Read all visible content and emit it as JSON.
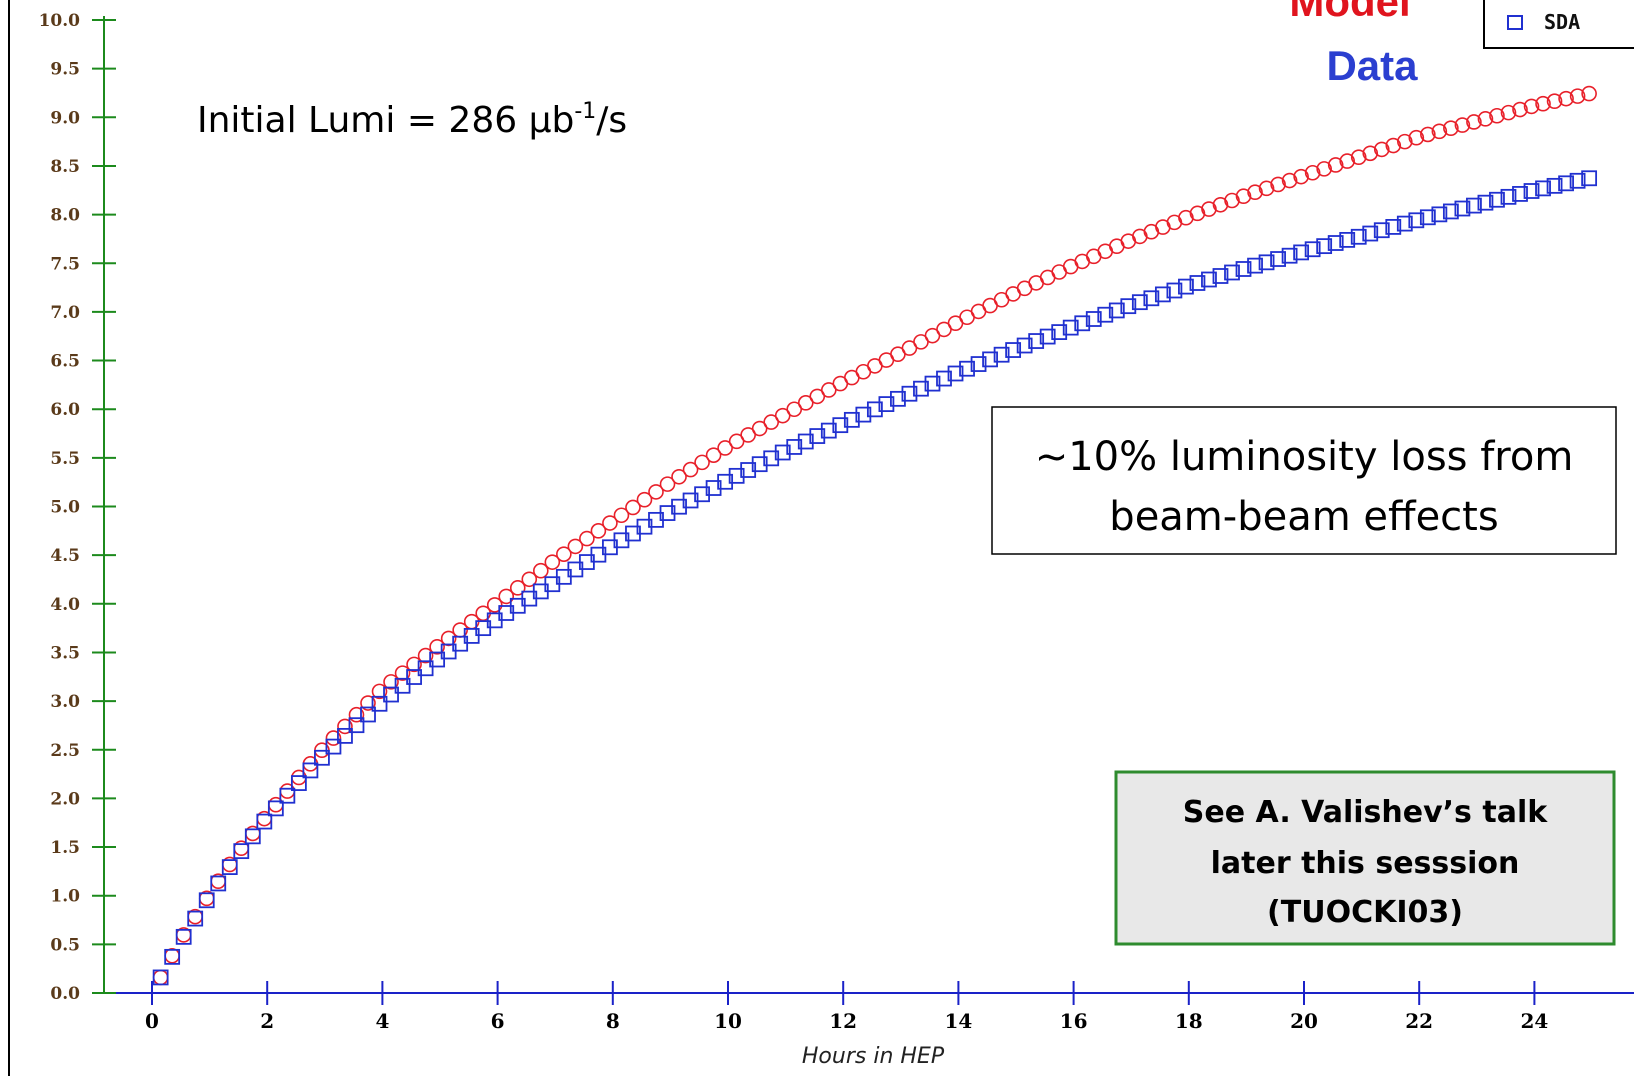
{
  "chart_data": {
    "type": "scatter",
    "xlabel": "Hours in HEP",
    "ylabel": "",
    "xlim": [
      -0.7,
      25.7
    ],
    "ylim": [
      0,
      10
    ],
    "x_ticks": [
      "0",
      "2",
      "4",
      "6",
      "8",
      "10",
      "12",
      "14",
      "16",
      "18",
      "20",
      "22",
      "24"
    ],
    "y_ticks": [
      "0.0",
      "0.5",
      "1.0",
      "1.5",
      "2.0",
      "2.5",
      "3.0",
      "3.5",
      "4.0",
      "4.5",
      "5.0",
      "5.5",
      "6.0",
      "6.5",
      "7.0",
      "7.5",
      "8.0",
      "8.5",
      "9.0",
      "9.5",
      "10.0"
    ],
    "grid": false,
    "legend_position": "top-right",
    "series": [
      {
        "name": "Model",
        "marker": "circle",
        "color": "#e8202a",
        "x": [
          0.15,
          0.5,
          1,
          1.5,
          2,
          3,
          4,
          5,
          6,
          7,
          8,
          9,
          10,
          11,
          12,
          13,
          14,
          15,
          16,
          17,
          18,
          19,
          20,
          21,
          22,
          23,
          24,
          25
        ],
        "y": [
          0.16,
          0.55,
          1.02,
          1.45,
          1.83,
          2.53,
          3.13,
          3.58,
          4.01,
          4.45,
          4.85,
          5.25,
          5.62,
          5.95,
          6.28,
          6.58,
          6.9,
          7.2,
          7.48,
          7.74,
          7.98,
          8.2,
          8.4,
          8.6,
          8.8,
          8.96,
          9.12,
          9.25
        ]
      },
      {
        "name": "SDA",
        "marker": "square",
        "color": "#2030d0",
        "x": [
          0.15,
          0.5,
          1,
          1.5,
          2,
          3,
          4,
          5,
          6,
          7,
          8,
          9,
          10,
          11,
          12,
          13,
          14,
          15,
          16,
          17,
          18,
          19,
          20,
          21,
          22,
          23,
          24,
          25
        ],
        "y": [
          0.16,
          0.53,
          1.0,
          1.42,
          1.8,
          2.45,
          3.0,
          3.45,
          3.85,
          4.22,
          4.6,
          4.95,
          5.27,
          5.57,
          5.85,
          6.12,
          6.38,
          6.62,
          6.85,
          7.07,
          7.27,
          7.45,
          7.62,
          7.78,
          7.95,
          8.1,
          8.25,
          8.38
        ]
      }
    ],
    "annotations": {
      "initial_lumi": "Initial Lumi = 286 μb",
      "initial_lumi_sup": "-1",
      "initial_lumi_suffix": "/s",
      "model_label": "Model",
      "data_label": "Data",
      "loss_line1": "~10% luminosity loss from",
      "loss_line2": "beam-beam effects",
      "talk_line1": "See A. Valishev’s talk",
      "talk_line2": "later this sesssion",
      "talk_line3": "(TUOCKI03)"
    }
  },
  "colors": {
    "y_axis": "#1c8a1c",
    "x_axis": "#1a22c8",
    "talk_box_border": "#2e8b2e",
    "talk_box_fill": "#e8e8e8"
  }
}
